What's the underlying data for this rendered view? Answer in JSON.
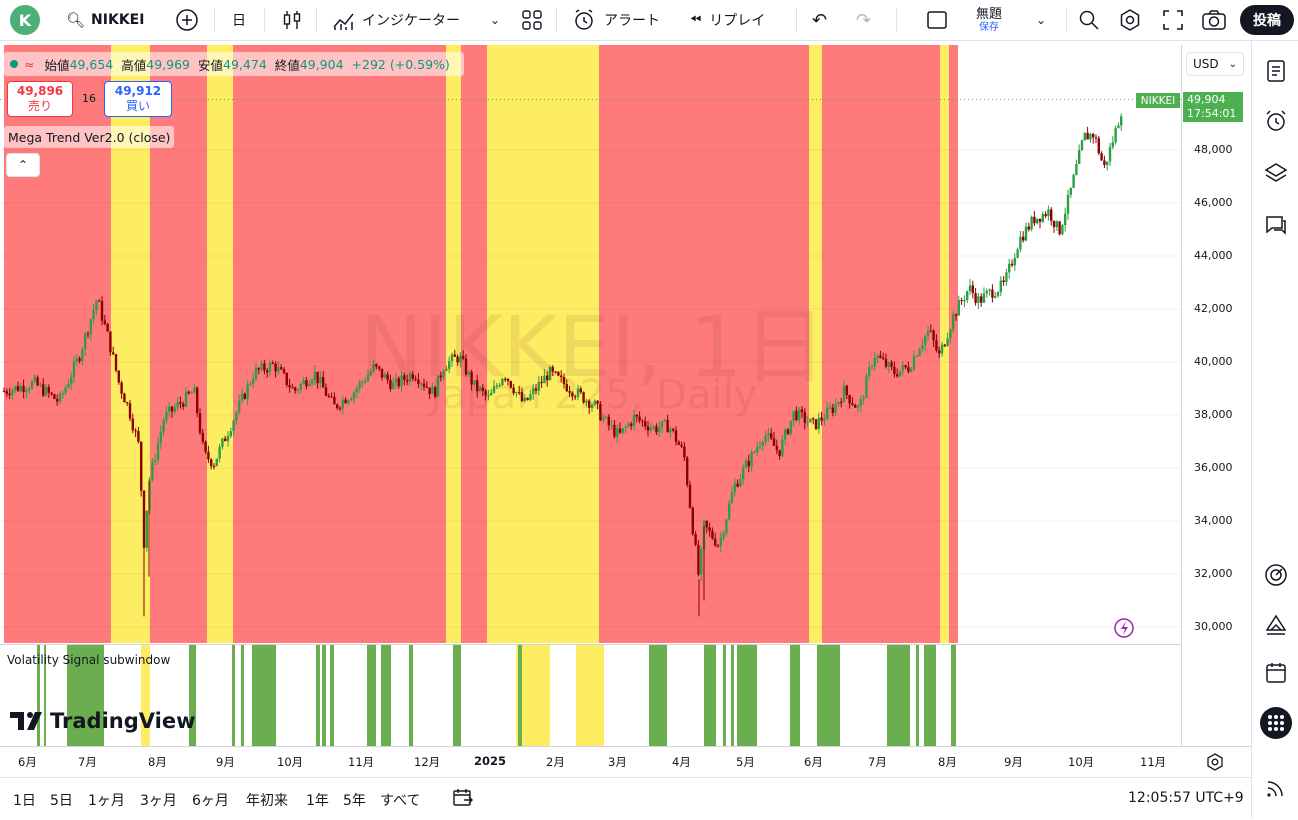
{
  "toolbar": {
    "avatar": "K",
    "symbol": "NIKKEI",
    "interval": "日",
    "indicators": "インジケーター",
    "alert": "アラート",
    "replay": "リプレイ",
    "layout_name": "無題",
    "layout_sub": "保存",
    "post": "投稿"
  },
  "legend": {
    "open_label": "始値",
    "open": "49,654",
    "high_label": "高値",
    "high": "49,969",
    "low_label": "安値",
    "low": "49,474",
    "close_label": "終値",
    "close": "49,904",
    "change": "+292 (+0.59%)"
  },
  "trade": {
    "sell_price": "49,896",
    "sell_label": "売り",
    "spread": "16",
    "buy_price": "49,912",
    "buy_label": "買い"
  },
  "indicator_name": "Mega Trend Ver2.0 (close)",
  "sub_indicator_name": "Volatility Signal subwindow",
  "brand": "TradingView",
  "currency": "USD",
  "current_price": {
    "symbol": "NIKKEI",
    "price": "49,904",
    "countdown": "17:54:01"
  },
  "watermark": {
    "line1": "NIKKEI, 1日",
    "line2": "Japan 225, Daily"
  },
  "bottom": {
    "ranges": [
      "1日",
      "5日",
      "1ヶ月",
      "3ヶ月",
      "6ヶ月",
      "年初来",
      "1年",
      "5年",
      "すべて"
    ],
    "clock": "12:05:57 UTC+9"
  },
  "colors": {
    "red_zone": "#ff7b7b",
    "yellow_zone": "#fded63",
    "signal_green": "#6aae4f",
    "candle_up": "#2e9e44",
    "candle_down": "#8b0000"
  },
  "chart_data": {
    "type": "candlestick",
    "ylim": [
      29500,
      51000
    ],
    "yticks": [
      30000,
      32000,
      34000,
      36000,
      38000,
      40000,
      42000,
      44000,
      46000,
      48000
    ],
    "time_labels": [
      "6月",
      "7月",
      "8月",
      "9月",
      "10月",
      "11月",
      "12月",
      "2025",
      "2月",
      "3月",
      "4月",
      "5月",
      "6月",
      "7月",
      "8月",
      "9月",
      "10月",
      "11月"
    ],
    "price_path": [
      [
        0,
        38900
      ],
      [
        0.03,
        39200
      ],
      [
        0.055,
        38500
      ],
      [
        0.075,
        40200
      ],
      [
        0.093,
        42400
      ],
      [
        0.105,
        40800
      ],
      [
        0.115,
        39200
      ],
      [
        0.125,
        38200
      ],
      [
        0.135,
        36800
      ],
      [
        0.14,
        33200
      ],
      [
        0.145,
        35500
      ],
      [
        0.16,
        37900
      ],
      [
        0.19,
        38900
      ],
      [
        0.2,
        36500
      ],
      [
        0.21,
        36200
      ],
      [
        0.23,
        37900
      ],
      [
        0.25,
        39600
      ],
      [
        0.27,
        39900
      ],
      [
        0.29,
        38900
      ],
      [
        0.31,
        39600
      ],
      [
        0.33,
        38300
      ],
      [
        0.35,
        38900
      ],
      [
        0.37,
        39800
      ],
      [
        0.39,
        39100
      ],
      [
        0.41,
        39600
      ],
      [
        0.43,
        38800
      ],
      [
        0.44,
        39900
      ],
      [
        0.455,
        40200
      ],
      [
        0.47,
        39100
      ],
      [
        0.485,
        38600
      ],
      [
        0.5,
        39600
      ],
      [
        0.52,
        38400
      ],
      [
        0.53,
        38900
      ],
      [
        0.545,
        39600
      ],
      [
        0.57,
        38900
      ],
      [
        0.59,
        38400
      ],
      [
        0.6,
        37800
      ],
      [
        0.615,
        37200
      ],
      [
        0.63,
        37900
      ],
      [
        0.65,
        37500
      ],
      [
        0.665,
        37600
      ],
      [
        0.68,
        36500
      ],
      [
        0.695,
        31800
      ],
      [
        0.7,
        33800
      ],
      [
        0.715,
        33100
      ],
      [
        0.73,
        35300
      ],
      [
        0.75,
        36600
      ],
      [
        0.76,
        37300
      ],
      [
        0.775,
        36600
      ],
      [
        0.79,
        38100
      ],
      [
        0.81,
        37600
      ],
      [
        0.83,
        38300
      ],
      [
        0.84,
        38900
      ],
      [
        0.855,
        38200
      ],
      [
        0.87,
        40300
      ],
      [
        0.89,
        39600
      ],
      [
        0.905,
        39800
      ],
      [
        0.915,
        40600
      ],
      [
        0.925,
        41200
      ],
      [
        0.935,
        40200
      ],
      [
        0.95,
        41800
      ],
      [
        0.965,
        42800
      ],
      [
        0.975,
        42300
      ],
      [
        0.985,
        42600
      ],
      [
        1.0,
        42900
      ],
      [
        1.015,
        44600
      ],
      [
        1.03,
        45400
      ],
      [
        1.045,
        45700
      ],
      [
        1.055,
        44900
      ],
      [
        1.065,
        46200
      ],
      [
        1.08,
        48500
      ],
      [
        1.09,
        48600
      ],
      [
        1.1,
        47300
      ],
      [
        1.11,
        48500
      ],
      [
        1.12,
        49900
      ]
    ],
    "spikes": [
      [
        0.14,
        30400
      ],
      [
        0.145,
        31900
      ],
      [
        0.695,
        30400
      ],
      [
        0.7,
        31000
      ]
    ],
    "zones": [
      {
        "from": 0.0,
        "to": 0.107,
        "color": "red"
      },
      {
        "from": 0.107,
        "to": 0.146,
        "color": "yellow"
      },
      {
        "from": 0.146,
        "to": 0.203,
        "color": "red"
      },
      {
        "from": 0.203,
        "to": 0.229,
        "color": "yellow"
      },
      {
        "from": 0.229,
        "to": 0.442,
        "color": "red"
      },
      {
        "from": 0.442,
        "to": 0.457,
        "color": "yellow"
      },
      {
        "from": 0.457,
        "to": 0.483,
        "color": "red"
      },
      {
        "from": 0.483,
        "to": 0.595,
        "color": "yellow"
      },
      {
        "from": 0.595,
        "to": 0.611,
        "color": "red"
      },
      {
        "from": 0.611,
        "to": 0.805,
        "color": "red"
      },
      {
        "from": 0.805,
        "to": 0.818,
        "color": "yellow"
      },
      {
        "from": 0.818,
        "to": 0.936,
        "color": "red"
      },
      {
        "from": 0.936,
        "to": 0.945,
        "color": "yellow"
      },
      {
        "from": 0.945,
        "to": 0.954,
        "color": "red"
      }
    ],
    "sub_yellow": [
      [
        0.137,
        0.146
      ],
      [
        0.512,
        0.546
      ],
      [
        0.572,
        0.6
      ]
    ],
    "sub_green": [
      [
        0.033,
        0.036
      ],
      [
        0.04,
        0.042
      ],
      [
        0.063,
        0.1
      ],
      [
        0.185,
        0.192
      ],
      [
        0.228,
        0.231
      ],
      [
        0.237,
        0.24
      ],
      [
        0.248,
        0.272
      ],
      [
        0.312,
        0.316
      ],
      [
        0.318,
        0.322
      ],
      [
        0.326,
        0.33
      ],
      [
        0.363,
        0.372
      ],
      [
        0.377,
        0.387
      ],
      [
        0.405,
        0.409
      ],
      [
        0.449,
        0.457
      ],
      [
        0.514,
        0.518
      ],
      [
        0.645,
        0.663
      ],
      [
        0.7,
        0.712
      ],
      [
        0.719,
        0.722
      ],
      [
        0.727,
        0.73
      ],
      [
        0.733,
        0.753
      ],
      [
        0.786,
        0.796
      ],
      [
        0.813,
        0.836
      ],
      [
        0.883,
        0.906
      ],
      [
        0.912,
        0.915
      ],
      [
        0.92,
        0.932
      ],
      [
        0.947,
        0.952
      ]
    ]
  }
}
